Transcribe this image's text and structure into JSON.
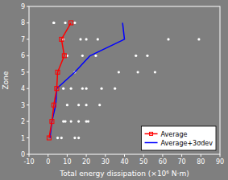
{
  "chart_data": {
    "type": "line",
    "xlabel": "Total energy dissipation (×10⁶ N·m)",
    "ylabel": "Zone",
    "xlim": [
      -10,
      90
    ],
    "ylim": [
      0,
      9
    ],
    "xticks": [
      -10,
      0,
      10,
      20,
      30,
      40,
      50,
      60,
      70,
      80,
      90
    ],
    "yticks": [
      0,
      1,
      2,
      3,
      4,
      5,
      6,
      7,
      8,
      9
    ],
    "grid": false,
    "legend": "lower right",
    "series": [
      {
        "type": "scatter",
        "color": "#ffffff",
        "marker": "circle",
        "x": [
          3,
          9,
          14,
          17,
          26,
          20,
          18,
          25,
          46,
          52,
          63,
          79,
          10,
          14,
          37,
          47,
          56,
          8,
          12,
          18,
          20,
          28,
          35,
          10,
          16,
          20,
          27,
          8,
          12,
          20,
          9,
          16,
          21,
          5,
          7,
          14,
          16,
          3,
          8
        ],
        "values": [
          8,
          8,
          8,
          7,
          7,
          7,
          6,
          6,
          6,
          6,
          7,
          7,
          6,
          5,
          5,
          5,
          5,
          4,
          4,
          4,
          4,
          4,
          4,
          3,
          3,
          3,
          3,
          2,
          2,
          2,
          2,
          2,
          2,
          1,
          1,
          1,
          1,
          8,
          7
        ]
      },
      {
        "name": "Average",
        "type": "line",
        "color": "#ff0000",
        "marker": "square",
        "x": [
          0.5,
          2.0,
          3.0,
          4.5,
          5.0,
          8.5,
          7.0,
          12.0
        ],
        "values": [
          1,
          2,
          3,
          4,
          5,
          6,
          7,
          8
        ]
      },
      {
        "name": "Average+3σdev",
        "type": "line",
        "color": "#0000ff",
        "x": [
          1.0,
          2.0,
          4.0,
          4.5,
          14.0,
          22.0,
          40.0,
          39.0
        ],
        "values": [
          1,
          2,
          3,
          4,
          5,
          6,
          7,
          8
        ]
      }
    ]
  }
}
